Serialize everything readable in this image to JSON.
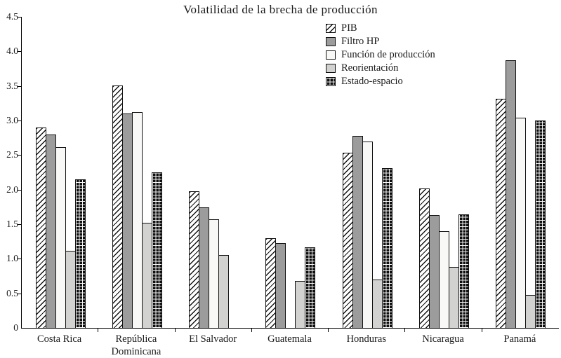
{
  "chart_data": {
    "type": "bar",
    "title": "Volatilidad de la brecha de producción",
    "categories": [
      "Costa Rica",
      "República\nDominicana",
      "El Salvador",
      "Guatemala",
      "Honduras",
      "Nicaragua",
      "Panamá"
    ],
    "series": [
      {
        "name": "PIB",
        "pattern": "diagonal-hatch",
        "values": [
          2.9,
          3.51,
          1.98,
          1.3,
          2.53,
          2.02,
          3.31
        ]
      },
      {
        "name": "Filtro HP",
        "pattern": "solid-gray",
        "values": [
          2.8,
          3.1,
          1.74,
          1.23,
          2.78,
          1.63,
          3.87
        ]
      },
      {
        "name": "Función de producción",
        "pattern": "solid-white",
        "values": [
          2.62,
          3.12,
          1.57,
          null,
          2.7,
          1.4,
          3.04
        ]
      },
      {
        "name": "Reorientación",
        "pattern": "solid-lightgray",
        "values": [
          1.12,
          1.52,
          1.05,
          0.68,
          0.7,
          0.88,
          0.48
        ]
      },
      {
        "name": "Estado-espacio",
        "pattern": "grid-black",
        "values": [
          2.15,
          2.25,
          null,
          1.17,
          2.31,
          1.64,
          3.0
        ]
      }
    ],
    "ylim": [
      0,
      4.5
    ],
    "ytick_step": 0.5,
    "ytick_labels": [
      "0",
      "0.5",
      "1.0",
      "1.5",
      "2.0",
      "2.5",
      "3.0",
      "3.5",
      "4.0",
      "4.5"
    ],
    "xlabel": "",
    "ylabel": "",
    "grid": false,
    "legend_position": "upper-center-right"
  },
  "colors": {
    "bar_gray": "#9c9c9c",
    "bar_white": "#f8f8f6",
    "bar_lightgray": "#d2d2d0",
    "bar_black": "#0d0d0d",
    "axis": "#000000",
    "text": "#1a1a1a",
    "background": "#ffffff"
  }
}
